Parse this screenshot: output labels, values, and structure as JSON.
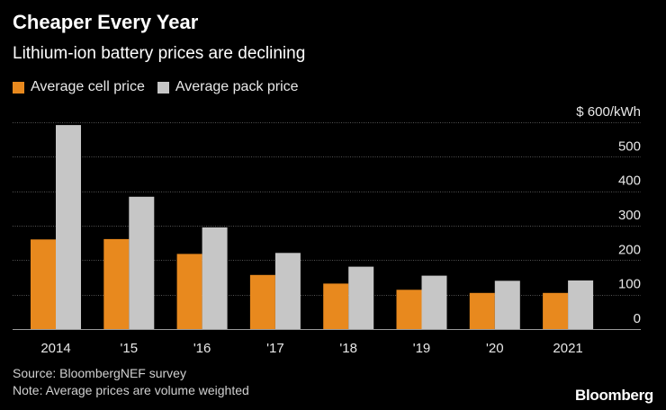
{
  "chart_data": {
    "type": "bar",
    "title": "Cheaper Every Year",
    "subtitle": "Lithium-ion battery prices are declining",
    "categories": [
      "2014",
      "'15",
      "'16",
      "'17",
      "'18",
      "'19",
      "'20",
      "2021"
    ],
    "series": [
      {
        "name": "Average cell price",
        "color": "#e8891e",
        "values": [
          260,
          261,
          218,
          157,
          132,
          114,
          105,
          105
        ]
      },
      {
        "name": "Average pack price",
        "color": "#c6c6c6",
        "values": [
          592,
          384,
          295,
          221,
          181,
          155,
          140,
          141
        ]
      }
    ],
    "y_ticks": [
      0,
      100,
      200,
      300,
      400,
      500,
      600
    ],
    "y_tick_labels": [
      "0",
      "100",
      "200",
      "300",
      "400",
      "500",
      "$ 600/kWh"
    ],
    "ylim": [
      0,
      600
    ],
    "xlabel": "",
    "ylabel": "",
    "grid": true,
    "legend_position": "top-left"
  },
  "footer": {
    "source": "Source: BloombergNEF survey",
    "note": "Note: Average prices are volume weighted"
  },
  "brand": {
    "name": "Bloomberg"
  },
  "colors": {
    "background": "#000000",
    "gridline": "#555555",
    "axis_text": "#e8e8e8"
  }
}
